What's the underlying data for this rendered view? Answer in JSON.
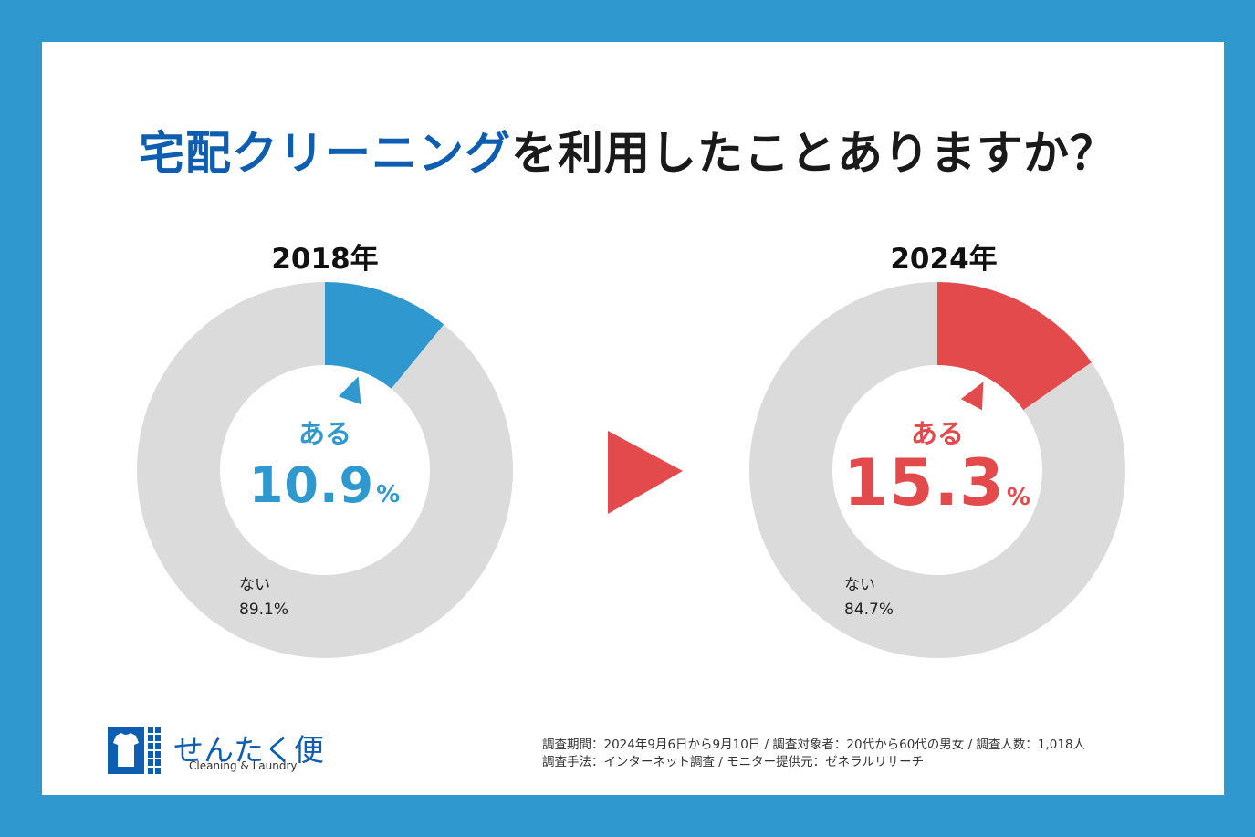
{
  "title": {
    "highlight": "宅配クリーニング",
    "rest": "を利用したことありますか？"
  },
  "chart_data": [
    {
      "type": "pie",
      "title": "2018年",
      "slices": [
        {
          "label": "ある",
          "value": 10.9,
          "color": "#2f98cf"
        },
        {
          "label": "ない",
          "value": 89.1,
          "color": "#dbdbdb"
        }
      ],
      "highlight_label": "ある",
      "highlight_value": "10.9",
      "highlight_unit": "%",
      "other_label": "ない",
      "other_value": "89.1%"
    },
    {
      "type": "pie",
      "title": "2024年",
      "slices": [
        {
          "label": "ある",
          "value": 15.3,
          "color": "#e34a4c"
        },
        {
          "label": "ない",
          "value": 84.7,
          "color": "#dbdbdb"
        }
      ],
      "highlight_label": "ある",
      "highlight_value": "15.3",
      "highlight_unit": "%",
      "other_label": "ない",
      "other_value": "84.7%"
    }
  ],
  "colors": {
    "background": "#2f98cf",
    "accent_blue": "#2f98cf",
    "accent_red": "#e34a4c",
    "remainder": "#dbdbdb",
    "title_blue": "#0d5db0"
  },
  "logo": {
    "name": "せんたく便",
    "subtitle": "Cleaning & Laundry",
    "icon": "shirt-icon"
  },
  "notes": {
    "line1": "調査期間：2024年9月6日から9月10日 / 調査対象者：20代から60代の男女 / 調査人数：1,018人",
    "line2": "調査手法：インターネット調査 / モニター提供元：ゼネラルリサーチ"
  }
}
